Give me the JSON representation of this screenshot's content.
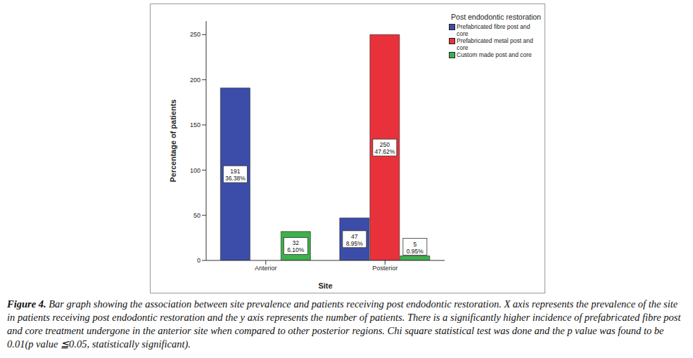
{
  "chart_data": {
    "type": "bar",
    "x_label": "Site",
    "y_label": "Percentage of patients",
    "legend_title": "Post endodontic restoration",
    "caption_label": "Figure 4.",
    "caption": "Bar graph showing the association between site prevalence and patients receiving post endodontic restoration. X axis represents the prevalence of the site in patients receiving post endodontic restoration and the y axis represents the number of patients. There is a significantly higher incidence of prefabricated fibre post and core treatment undergone in the anterior site when compared to other posterior regions. Chi square statistical test was done and the p value was found to be 0.01(p value ≦0.05, statistically significant).",
    "categories": [
      "Anterior",
      "Posterior"
    ],
    "series": [
      {
        "name": "Prefabricated fibre post and core",
        "color": "#3b4da8",
        "values": [
          191,
          47
        ],
        "value_labels": [
          "191\n36.38%",
          "47\n8.95%"
        ]
      },
      {
        "name": "Prefabricated metal post and core",
        "color": "#e8313a",
        "values": [
          null,
          250
        ],
        "value_labels": [
          null,
          "250\n47.62%"
        ]
      },
      {
        "name": "Custom made post and core",
        "color": "#3db04a",
        "values": [
          32,
          5
        ],
        "value_labels": [
          "32\n6.10%",
          "5\n0.95%"
        ]
      }
    ],
    "ylim": [
      0,
      265
    ],
    "yticks": [
      0,
      50,
      100,
      150,
      200,
      250
    ],
    "grid": false,
    "legend": "right",
    "data_labels": true
  }
}
